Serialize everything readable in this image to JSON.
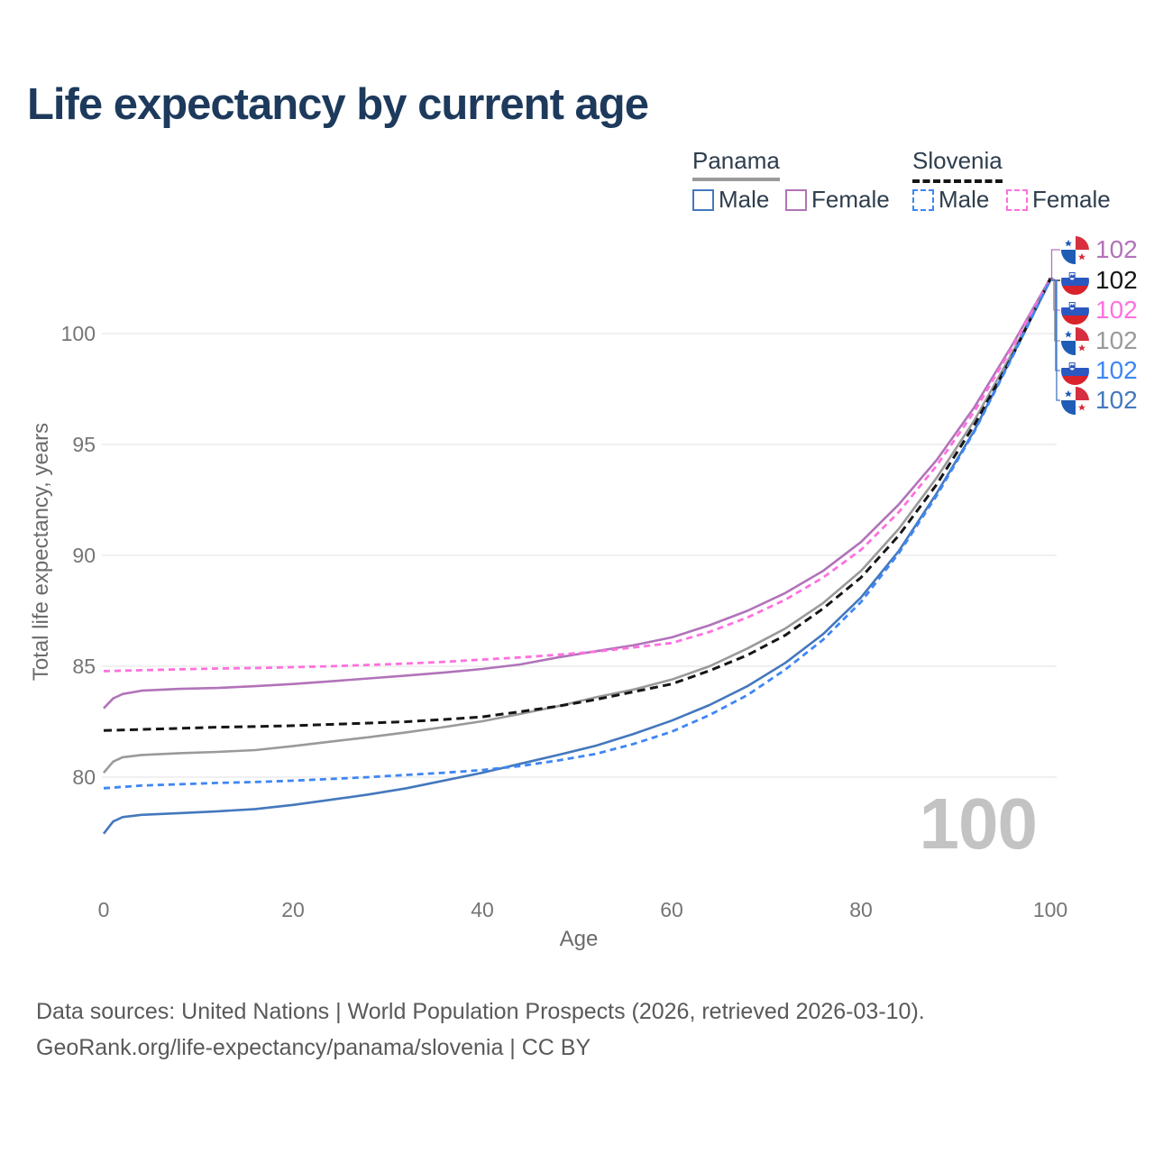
{
  "title": "Life expectancy by current age",
  "legend": {
    "panama_label": "Panama",
    "slovenia_label": "Slovenia",
    "panama_male_label": "Male",
    "panama_female_label": "Female",
    "slovenia_male_label": "Male",
    "slovenia_female_label": "Female"
  },
  "axes": {
    "y_title": "Total life expectancy, years",
    "x_title": "Age",
    "y_ticks": [
      "100",
      "95",
      "90",
      "85",
      "80"
    ],
    "x_ticks": [
      "0",
      "20",
      "40",
      "60",
      "80",
      "100"
    ]
  },
  "watermark": "100",
  "footer": {
    "line1": "Data sources: United Nations | World Population Prospects (2026, retrieved 2026-03-10).",
    "line2": "GeoRank.org/life-expectancy/panama/slovenia | CC BY"
  },
  "chart_data": {
    "type": "line",
    "title": "Life expectancy by current age",
    "xlabel": "Age",
    "ylabel": "Total life expectancy, years",
    "xlim": [
      0,
      100
    ],
    "ylim": [
      77,
      103
    ],
    "x_ticks": [
      0,
      20,
      40,
      60,
      80,
      100
    ],
    "y_gridlines": [
      80,
      85,
      90,
      95,
      100
    ],
    "legend_position": "top-right",
    "grid": "horizontal-only",
    "series": [
      {
        "id": "panama-female",
        "country": "Panama",
        "sex": "Female",
        "style": "solid",
        "color": "#b173b9",
        "width": 2.6,
        "dash": null,
        "end_label": "102",
        "points": [
          [
            0,
            83.1
          ],
          [
            1,
            83.55
          ],
          [
            2,
            83.75
          ],
          [
            4,
            83.9
          ],
          [
            8,
            83.98
          ],
          [
            12,
            84.02
          ],
          [
            16,
            84.1
          ],
          [
            20,
            84.2
          ],
          [
            24,
            84.32
          ],
          [
            28,
            84.45
          ],
          [
            32,
            84.58
          ],
          [
            36,
            84.72
          ],
          [
            40,
            84.88
          ],
          [
            44,
            85.08
          ],
          [
            48,
            85.4
          ],
          [
            52,
            85.68
          ],
          [
            56,
            85.95
          ],
          [
            60,
            86.3
          ],
          [
            64,
            86.85
          ],
          [
            68,
            87.5
          ],
          [
            72,
            88.3
          ],
          [
            76,
            89.3
          ],
          [
            80,
            90.6
          ],
          [
            84,
            92.3
          ],
          [
            88,
            94.3
          ],
          [
            92,
            96.7
          ],
          [
            96,
            99.5
          ],
          [
            100,
            102.5
          ]
        ]
      },
      {
        "id": "slovenia-total",
        "country": "Slovenia",
        "sex": "Total",
        "style": "dashed",
        "color": "#151515",
        "width": 3,
        "dash": "9 5.5",
        "end_label": "102",
        "points": [
          [
            0,
            82.1
          ],
          [
            4,
            82.15
          ],
          [
            8,
            82.2
          ],
          [
            12,
            82.25
          ],
          [
            16,
            82.28
          ],
          [
            20,
            82.32
          ],
          [
            24,
            82.38
          ],
          [
            28,
            82.44
          ],
          [
            32,
            82.5
          ],
          [
            36,
            82.6
          ],
          [
            40,
            82.72
          ],
          [
            44,
            82.95
          ],
          [
            48,
            83.2
          ],
          [
            52,
            83.5
          ],
          [
            56,
            83.85
          ],
          [
            60,
            84.2
          ],
          [
            64,
            84.8
          ],
          [
            68,
            85.5
          ],
          [
            72,
            86.4
          ],
          [
            76,
            87.6
          ],
          [
            80,
            89.0
          ],
          [
            84,
            90.9
          ],
          [
            88,
            93.2
          ],
          [
            92,
            95.9
          ],
          [
            96,
            99.0
          ],
          [
            100,
            102.48
          ]
        ]
      },
      {
        "id": "slovenia-female",
        "country": "Slovenia",
        "sex": "Female",
        "style": "dashed",
        "color": "#ff70df",
        "width": 2.8,
        "dash": "7 5",
        "end_label": "102",
        "points": [
          [
            0,
            84.78
          ],
          [
            4,
            84.82
          ],
          [
            8,
            84.86
          ],
          [
            12,
            84.9
          ],
          [
            16,
            84.92
          ],
          [
            20,
            84.96
          ],
          [
            24,
            85.0
          ],
          [
            28,
            85.06
          ],
          [
            32,
            85.12
          ],
          [
            36,
            85.2
          ],
          [
            40,
            85.3
          ],
          [
            44,
            85.4
          ],
          [
            48,
            85.52
          ],
          [
            52,
            85.66
          ],
          [
            56,
            85.85
          ],
          [
            60,
            86.05
          ],
          [
            64,
            86.55
          ],
          [
            68,
            87.2
          ],
          [
            72,
            88.0
          ],
          [
            76,
            89.0
          ],
          [
            80,
            90.25
          ],
          [
            84,
            91.95
          ],
          [
            88,
            94.05
          ],
          [
            92,
            96.5
          ],
          [
            96,
            99.4
          ],
          [
            100,
            102.46
          ]
        ]
      },
      {
        "id": "panama-total",
        "country": "Panama",
        "sex": "Total",
        "style": "solid",
        "color": "#9a9a9a",
        "width": 2.6,
        "dash": null,
        "end_label": "102",
        "points": [
          [
            0,
            80.2
          ],
          [
            1,
            80.7
          ],
          [
            2,
            80.9
          ],
          [
            4,
            81.0
          ],
          [
            8,
            81.08
          ],
          [
            12,
            81.14
          ],
          [
            16,
            81.22
          ],
          [
            20,
            81.4
          ],
          [
            24,
            81.6
          ],
          [
            28,
            81.8
          ],
          [
            32,
            82.02
          ],
          [
            36,
            82.26
          ],
          [
            40,
            82.52
          ],
          [
            44,
            82.85
          ],
          [
            48,
            83.2
          ],
          [
            52,
            83.6
          ],
          [
            56,
            83.95
          ],
          [
            60,
            84.4
          ],
          [
            64,
            85.0
          ],
          [
            68,
            85.8
          ],
          [
            72,
            86.7
          ],
          [
            76,
            87.85
          ],
          [
            80,
            89.3
          ],
          [
            84,
            91.2
          ],
          [
            88,
            93.5
          ],
          [
            92,
            96.1
          ],
          [
            96,
            99.15
          ],
          [
            100,
            102.44
          ]
        ]
      },
      {
        "id": "slovenia-male",
        "country": "Slovenia",
        "sex": "Male",
        "style": "dashed",
        "color": "#3e86f5",
        "width": 2.8,
        "dash": "7 5",
        "end_label": "102",
        "points": [
          [
            0,
            79.5
          ],
          [
            4,
            79.62
          ],
          [
            8,
            79.68
          ],
          [
            12,
            79.74
          ],
          [
            16,
            79.78
          ],
          [
            20,
            79.84
          ],
          [
            24,
            79.92
          ],
          [
            28,
            80.0
          ],
          [
            32,
            80.1
          ],
          [
            36,
            80.2
          ],
          [
            40,
            80.32
          ],
          [
            44,
            80.5
          ],
          [
            48,
            80.75
          ],
          [
            52,
            81.05
          ],
          [
            56,
            81.5
          ],
          [
            60,
            82.05
          ],
          [
            64,
            82.8
          ],
          [
            68,
            83.7
          ],
          [
            72,
            84.85
          ],
          [
            76,
            86.2
          ],
          [
            80,
            87.9
          ],
          [
            84,
            90.1
          ],
          [
            88,
            92.7
          ],
          [
            92,
            95.6
          ],
          [
            96,
            98.95
          ],
          [
            100,
            102.42
          ]
        ]
      },
      {
        "id": "panama-male",
        "country": "Panama",
        "sex": "Male",
        "style": "solid",
        "color": "#4478bd",
        "width": 2.6,
        "dash": null,
        "end_label": "102",
        "points": [
          [
            0,
            77.45
          ],
          [
            1,
            78.0
          ],
          [
            2,
            78.2
          ],
          [
            4,
            78.3
          ],
          [
            8,
            78.38
          ],
          [
            12,
            78.46
          ],
          [
            16,
            78.56
          ],
          [
            20,
            78.75
          ],
          [
            24,
            78.98
          ],
          [
            28,
            79.22
          ],
          [
            32,
            79.5
          ],
          [
            36,
            79.85
          ],
          [
            40,
            80.2
          ],
          [
            44,
            80.6
          ],
          [
            48,
            81.0
          ],
          [
            52,
            81.42
          ],
          [
            56,
            81.95
          ],
          [
            60,
            82.55
          ],
          [
            64,
            83.25
          ],
          [
            68,
            84.1
          ],
          [
            72,
            85.15
          ],
          [
            76,
            86.45
          ],
          [
            80,
            88.1
          ],
          [
            84,
            90.2
          ],
          [
            88,
            92.8
          ],
          [
            92,
            95.65
          ],
          [
            96,
            99.0
          ],
          [
            100,
            102.4
          ]
        ]
      }
    ]
  }
}
